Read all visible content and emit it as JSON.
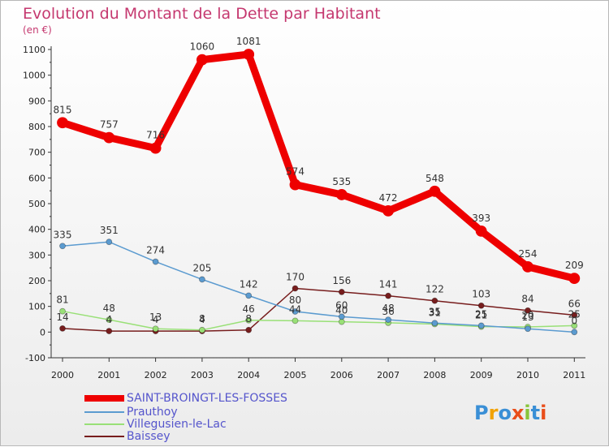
{
  "chart_data": {
    "type": "line",
    "title": "Evolution du Montant de la Dette par Habitant",
    "subtitle": "(en €)",
    "x": [
      "2000",
      "2001",
      "2002",
      "2003",
      "2004",
      "2005",
      "2006",
      "2007",
      "2008",
      "2009",
      "2010",
      "2011"
    ],
    "ylim": [
      -100,
      1100
    ],
    "yticks": [
      -100,
      0,
      100,
      200,
      300,
      400,
      500,
      600,
      700,
      800,
      900,
      1000,
      1100
    ],
    "grid": false,
    "legend_position": "bottom-left",
    "series": [
      {
        "name": "SAINT-BROINGT-LES-FOSSES",
        "color": "#ee0000",
        "values": [
          815,
          757,
          716,
          1060,
          1081,
          574,
          535,
          472,
          548,
          393,
          254,
          209
        ],
        "labels": [
          "815",
          "757",
          "716",
          "1060",
          "1081",
          "574",
          "535",
          "472",
          "548",
          "393",
          "254",
          "209"
        ]
      },
      {
        "name": "Prauthoy",
        "color": "#5b9bd0",
        "values": [
          335,
          351,
          274,
          205,
          142,
          80,
          60,
          48,
          35,
          25,
          13,
          0
        ],
        "labels": [
          "335",
          "351",
          "274",
          "205",
          "142",
          "80",
          "60",
          "48",
          "35",
          "25",
          "13",
          "0"
        ]
      },
      {
        "name": "Villegusien-le-Lac",
        "color": "#99e077",
        "values": [
          81,
          48,
          13,
          8,
          46,
          44,
          40,
          36,
          31,
          21,
          20,
          25
        ],
        "labels": [
          "81",
          "48",
          "13",
          "8",
          "46",
          "44",
          "40",
          "36",
          "31",
          "21",
          "20",
          "25"
        ]
      },
      {
        "name": "Baissey",
        "color": "#771d1d",
        "values": [
          14,
          4,
          4,
          4,
          8,
          170,
          156,
          141,
          122,
          103,
          84,
          66
        ],
        "labels": [
          "14",
          "4",
          "4",
          "4",
          "8",
          "170",
          "156",
          "141",
          "122",
          "103",
          "84",
          "66"
        ]
      }
    ]
  },
  "logo": {
    "text": "Proxiti"
  }
}
